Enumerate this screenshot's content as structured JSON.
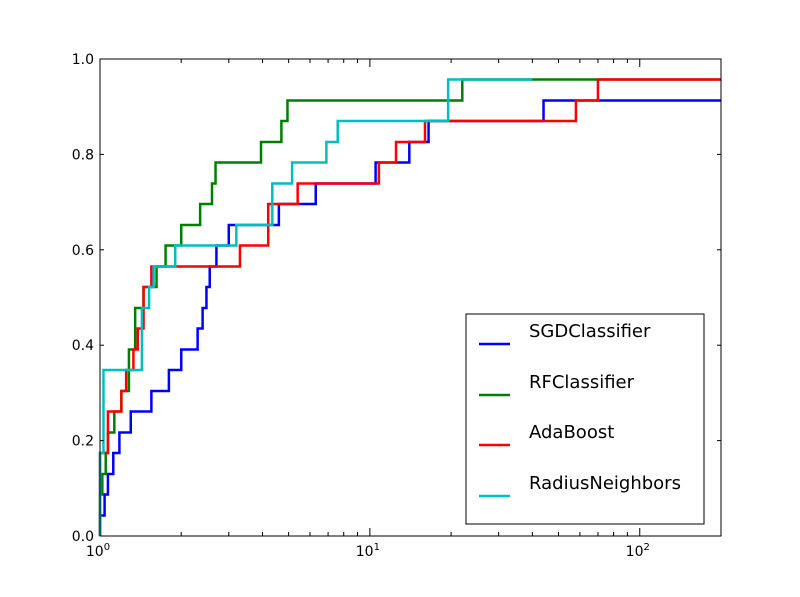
{
  "chart_data": {
    "type": "line",
    "step": true,
    "xscale": "log",
    "xlim": [
      1,
      200
    ],
    "ylim": [
      0.0,
      1.0
    ],
    "xticks": [
      {
        "value": 1,
        "base": "10",
        "exp": "0"
      },
      {
        "value": 10,
        "base": "10",
        "exp": "1"
      },
      {
        "value": 100,
        "base": "10",
        "exp": "2"
      }
    ],
    "yticks": [
      "0.0",
      "0.2",
      "0.4",
      "0.6",
      "0.8",
      "1.0"
    ],
    "legend_position": "lower-right",
    "series": [
      {
        "name": "SGDClassifier",
        "color": "#0000ff",
        "points": [
          [
            1.0,
            0.0
          ],
          [
            1.0,
            0.043
          ],
          [
            1.04,
            0.043
          ],
          [
            1.04,
            0.087
          ],
          [
            1.07,
            0.087
          ],
          [
            1.07,
            0.13
          ],
          [
            1.12,
            0.13
          ],
          [
            1.12,
            0.174
          ],
          [
            1.18,
            0.174
          ],
          [
            1.18,
            0.217
          ],
          [
            1.3,
            0.217
          ],
          [
            1.3,
            0.261
          ],
          [
            1.55,
            0.261
          ],
          [
            1.55,
            0.304
          ],
          [
            1.8,
            0.304
          ],
          [
            1.8,
            0.348
          ],
          [
            2.0,
            0.348
          ],
          [
            2.0,
            0.391
          ],
          [
            2.3,
            0.391
          ],
          [
            2.3,
            0.435
          ],
          [
            2.4,
            0.435
          ],
          [
            2.4,
            0.478
          ],
          [
            2.48,
            0.478
          ],
          [
            2.48,
            0.522
          ],
          [
            2.55,
            0.522
          ],
          [
            2.55,
            0.565
          ],
          [
            2.7,
            0.565
          ],
          [
            2.7,
            0.609
          ],
          [
            3.0,
            0.609
          ],
          [
            3.0,
            0.652
          ],
          [
            4.6,
            0.652
          ],
          [
            4.6,
            0.696
          ],
          [
            6.3,
            0.696
          ],
          [
            6.3,
            0.739
          ],
          [
            10.5,
            0.739
          ],
          [
            10.5,
            0.783
          ],
          [
            14.0,
            0.783
          ],
          [
            14.0,
            0.826
          ],
          [
            16.5,
            0.826
          ],
          [
            16.5,
            0.87
          ],
          [
            44,
            0.87
          ],
          [
            44,
            0.913
          ],
          [
            200,
            0.913
          ]
        ]
      },
      {
        "name": "RFClassifier",
        "color": "#008000",
        "points": [
          [
            1.0,
            0.0
          ],
          [
            1.0,
            0.087
          ],
          [
            1.02,
            0.087
          ],
          [
            1.02,
            0.13
          ],
          [
            1.05,
            0.13
          ],
          [
            1.05,
            0.174
          ],
          [
            1.07,
            0.174
          ],
          [
            1.07,
            0.217
          ],
          [
            1.13,
            0.217
          ],
          [
            1.13,
            0.261
          ],
          [
            1.2,
            0.261
          ],
          [
            1.2,
            0.304
          ],
          [
            1.28,
            0.304
          ],
          [
            1.28,
            0.391
          ],
          [
            1.35,
            0.391
          ],
          [
            1.35,
            0.478
          ],
          [
            1.45,
            0.478
          ],
          [
            1.45,
            0.522
          ],
          [
            1.62,
            0.522
          ],
          [
            1.62,
            0.565
          ],
          [
            1.75,
            0.565
          ],
          [
            1.75,
            0.609
          ],
          [
            2.0,
            0.609
          ],
          [
            2.0,
            0.652
          ],
          [
            2.35,
            0.652
          ],
          [
            2.35,
            0.696
          ],
          [
            2.6,
            0.696
          ],
          [
            2.6,
            0.739
          ],
          [
            2.68,
            0.739
          ],
          [
            2.68,
            0.783
          ],
          [
            3.95,
            0.783
          ],
          [
            3.95,
            0.826
          ],
          [
            4.7,
            0.826
          ],
          [
            4.7,
            0.87
          ],
          [
            4.95,
            0.87
          ],
          [
            4.95,
            0.913
          ],
          [
            22,
            0.913
          ],
          [
            22,
            0.957
          ],
          [
            200,
            0.957
          ]
        ]
      },
      {
        "name": "AdaBoost",
        "color": "#ff0000",
        "points": [
          [
            1.0,
            0.0
          ],
          [
            1.0,
            0.174
          ],
          [
            1.07,
            0.174
          ],
          [
            1.07,
            0.261
          ],
          [
            1.2,
            0.261
          ],
          [
            1.2,
            0.304
          ],
          [
            1.25,
            0.304
          ],
          [
            1.25,
            0.348
          ],
          [
            1.33,
            0.348
          ],
          [
            1.33,
            0.391
          ],
          [
            1.38,
            0.391
          ],
          [
            1.38,
            0.435
          ],
          [
            1.45,
            0.435
          ],
          [
            1.45,
            0.522
          ],
          [
            1.55,
            0.522
          ],
          [
            1.55,
            0.565
          ],
          [
            3.3,
            0.565
          ],
          [
            3.3,
            0.609
          ],
          [
            4.2,
            0.609
          ],
          [
            4.2,
            0.696
          ],
          [
            5.4,
            0.696
          ],
          [
            5.4,
            0.739
          ],
          [
            10.8,
            0.739
          ],
          [
            10.8,
            0.783
          ],
          [
            12.5,
            0.783
          ],
          [
            12.5,
            0.826
          ],
          [
            16,
            0.826
          ],
          [
            16,
            0.87
          ],
          [
            58,
            0.87
          ],
          [
            58,
            0.913
          ],
          [
            70,
            0.913
          ],
          [
            70,
            0.957
          ],
          [
            200,
            0.957
          ]
        ]
      },
      {
        "name": "RadiusNeighbors",
        "color": "#00bfbf",
        "points": [
          [
            1.0,
            0.0
          ],
          [
            1.0,
            0.174
          ],
          [
            1.03,
            0.174
          ],
          [
            1.03,
            0.348
          ],
          [
            1.43,
            0.348
          ],
          [
            1.43,
            0.478
          ],
          [
            1.52,
            0.478
          ],
          [
            1.52,
            0.522
          ],
          [
            1.58,
            0.522
          ],
          [
            1.58,
            0.565
          ],
          [
            1.9,
            0.565
          ],
          [
            1.9,
            0.609
          ],
          [
            3.2,
            0.609
          ],
          [
            3.2,
            0.652
          ],
          [
            4.35,
            0.652
          ],
          [
            4.35,
            0.739
          ],
          [
            5.15,
            0.739
          ],
          [
            5.15,
            0.783
          ],
          [
            6.9,
            0.783
          ],
          [
            6.9,
            0.826
          ],
          [
            7.6,
            0.826
          ],
          [
            7.6,
            0.87
          ],
          [
            19.5,
            0.87
          ],
          [
            19.5,
            0.957
          ],
          [
            40,
            0.957
          ]
        ]
      }
    ]
  }
}
